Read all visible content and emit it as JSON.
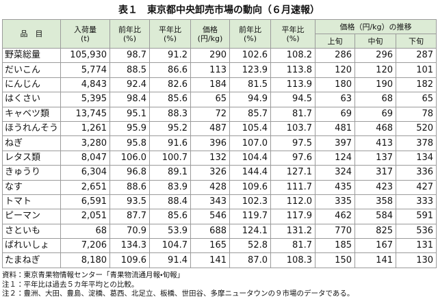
{
  "title": "表１　東京都中央卸売市場の動向（６月速報）",
  "table": {
    "columns": [
      [
        "品　目"
      ],
      [
        "入荷量",
        "(t)"
      ],
      [
        "前年比",
        "(%)"
      ],
      [
        "平年比",
        "(%)"
      ],
      [
        "価格",
        "(円/kg)"
      ],
      [
        "前年比",
        "(%)"
      ],
      [
        "平年比",
        "(%)"
      ]
    ],
    "group": "価格（円/kg）の推移",
    "subcolumns": [
      "上旬",
      "中旬",
      "下旬"
    ],
    "rows": [
      [
        "野菜総量",
        "105,930",
        "98.7",
        "91.2",
        "290",
        "102.6",
        "108.2",
        "286",
        "296",
        "287"
      ],
      [
        "だいこん",
        "5,774",
        "88.5",
        "86.6",
        "113",
        "123.9",
        "113.8",
        "120",
        "120",
        "101"
      ],
      [
        "にんじん",
        "4,843",
        "92.4",
        "82.6",
        "184",
        "81.5",
        "113.9",
        "180",
        "190",
        "182"
      ],
      [
        "はくさい",
        "5,395",
        "98.4",
        "85.6",
        "65",
        "94.9",
        "94.5",
        "63",
        "68",
        "65"
      ],
      [
        "キャベツ類",
        "13,745",
        "95.1",
        "88.3",
        "72",
        "85.7",
        "81.7",
        "69",
        "69",
        "78"
      ],
      [
        "ほうれんそう",
        "1,261",
        "95.9",
        "95.2",
        "487",
        "105.4",
        "103.7",
        "481",
        "468",
        "520"
      ],
      [
        "ねぎ",
        "3,280",
        "95.8",
        "91.6",
        "396",
        "107.0",
        "97.5",
        "397",
        "413",
        "378"
      ],
      [
        "レタス類",
        "8,047",
        "106.0",
        "100.7",
        "132",
        "104.4",
        "97.6",
        "124",
        "137",
        "134"
      ],
      [
        "きゅうり",
        "6,304",
        "96.8",
        "89.1",
        "326",
        "144.4",
        "127.1",
        "324",
        "317",
        "336"
      ],
      [
        "なす",
        "2,651",
        "88.6",
        "83.9",
        "428",
        "109.6",
        "111.7",
        "435",
        "423",
        "427"
      ],
      [
        "トマト",
        "6,591",
        "93.5",
        "88.4",
        "343",
        "102.3",
        "112.0",
        "335",
        "358",
        "333"
      ],
      [
        "ピーマン",
        "2,051",
        "87.7",
        "85.6",
        "546",
        "119.7",
        "117.9",
        "462",
        "584",
        "591"
      ],
      [
        "さといも",
        "68",
        "70.9",
        "53.9",
        "688",
        "124.1",
        "131.2",
        "770",
        "825",
        "536"
      ],
      [
        "ばれいしょ",
        "7,206",
        "134.3",
        "104.7",
        "165",
        "52.8",
        "81.7",
        "185",
        "167",
        "131"
      ],
      [
        "たまねぎ",
        "8,180",
        "109.6",
        "91.4",
        "141",
        "87.0",
        "108.3",
        "150",
        "141",
        "130"
      ]
    ]
  },
  "notes": [
    "資料：東京青果物情報センター「青果物流通月報・旬報」",
    "注１：平年比は過去５カ年平均との比較。",
    "注２：豊洲、大田、豊島、淀橋、葛西、北足立、板橋、世田谷、多摩ニュータウンの９市場のデータである。"
  ]
}
